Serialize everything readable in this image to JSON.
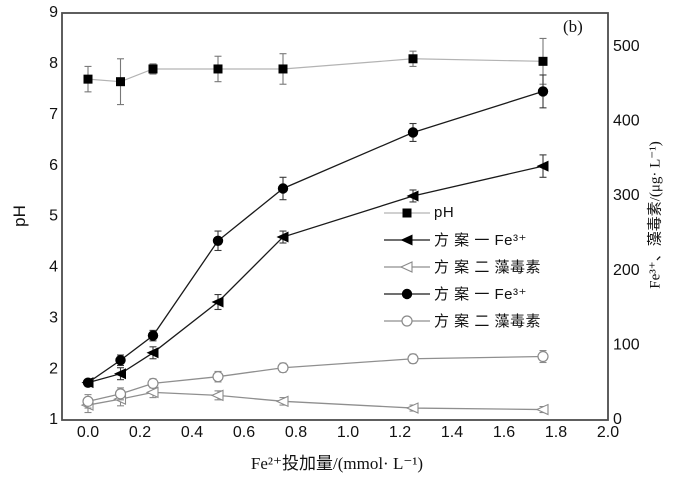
{
  "figure_label": "(b)",
  "axes": {
    "x": {
      "label": "Fe²⁺投加量/(mmol· L⁻¹)",
      "ticks": [
        "0.0",
        "0.2",
        "0.4",
        "0.6",
        "0.8",
        "1.0",
        "1.2",
        "1.4",
        "1.6",
        "1.8",
        "2.0"
      ],
      "tick_values": [
        0.0,
        0.2,
        0.4,
        0.6,
        0.8,
        1.0,
        1.2,
        1.4,
        1.6,
        1.8,
        2.0
      ],
      "range": [
        -0.1,
        2.0
      ]
    },
    "y_left": {
      "label": "pH",
      "ticks": [
        "1",
        "2",
        "3",
        "4",
        "5",
        "6",
        "7",
        "8",
        "9"
      ],
      "tick_values": [
        1,
        2,
        3,
        4,
        5,
        6,
        7,
        8,
        9
      ],
      "range": [
        1,
        9
      ]
    },
    "y_right": {
      "label": "Fe³⁺、藻毒素/(μg· L⁻¹)",
      "ticks": [
        "0",
        "100",
        "200",
        "300",
        "400",
        "500"
      ],
      "tick_values": [
        0,
        100,
        200,
        300,
        400,
        500
      ],
      "range": [
        0,
        545
      ]
    }
  },
  "chart_data": {
    "type": "line",
    "x": [
      0,
      0.125,
      0.25,
      0.5,
      0.75,
      1.25,
      1.75
    ],
    "legend_position": "middle-right",
    "grid": false,
    "series": [
      {
        "name": "pH",
        "axis": "left",
        "marker": "square-filled",
        "values": [
          7.7,
          7.65,
          7.9,
          7.9,
          7.9,
          8.1,
          8.05
        ],
        "errors": [
          0.25,
          0.45,
          0.1,
          0.25,
          0.3,
          0.15,
          0.45
        ],
        "line_color": "#b3b3b3",
        "marker_fill": "#000000",
        "marker_stroke": "#000000",
        "error_color": "#787878"
      },
      {
        "name": "方 案 一 Fe³⁺",
        "axis": "right",
        "marker": "triangle-left-filled",
        "values": [
          50,
          62,
          90,
          158,
          245,
          300,
          340
        ],
        "errors": [
          0,
          8,
          8,
          10,
          8,
          8,
          15
        ],
        "line_color": "#1a1a1a",
        "marker_fill": "#000000",
        "marker_stroke": "#000000",
        "error_color": "#3a3a3a"
      },
      {
        "name": "方 案 二 藻毒素",
        "axis": "right",
        "marker": "triangle-left-open",
        "values": [
          20,
          28,
          37,
          33,
          25,
          16,
          14
        ],
        "errors": [
          10,
          9,
          7,
          6,
          5,
          4,
          4
        ],
        "line_color": "#8f8f8f",
        "marker_fill": "#ffffff",
        "marker_stroke": "#8a8a8a",
        "error_color": "#8a8a8a"
      },
      {
        "name": "方 案 一 Fe³⁺",
        "axis": "right",
        "marker": "circle-filled",
        "values": [
          50,
          80,
          113,
          240,
          310,
          385,
          440
        ],
        "errors": [
          0,
          7,
          7,
          13,
          15,
          12,
          22
        ],
        "line_color": "#1a1a1a",
        "marker_fill": "#000000",
        "marker_stroke": "#000000",
        "error_color": "#3a3a3a"
      },
      {
        "name": "方 案 二 藻毒素",
        "axis": "right",
        "marker": "circle-open",
        "values": [
          25,
          35,
          49,
          58,
          70,
          82,
          85
        ],
        "errors": [
          9,
          8,
          6,
          7,
          6,
          6,
          8
        ],
        "line_color": "#8f8f8f",
        "marker_fill": "#ffffff",
        "marker_stroke": "#8a8a8a",
        "error_color": "#8a8a8a"
      }
    ]
  },
  "colors": {
    "frame": "#4d4d4d",
    "background": "#ffffff",
    "tick_text": "#111111"
  }
}
